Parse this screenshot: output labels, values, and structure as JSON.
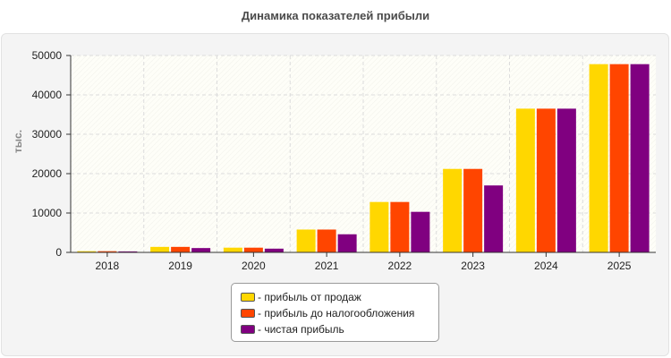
{
  "chart_data": {
    "type": "bar",
    "title": "Динамика показателей прибыли",
    "ylabel": "тыс.",
    "xlabel": "",
    "ylim": [
      0,
      50000
    ],
    "yticks": [
      0,
      10000,
      20000,
      30000,
      40000,
      50000
    ],
    "grid": true,
    "legend_position": "bottom-center",
    "categories": [
      "2018",
      "2019",
      "2020",
      "2021",
      "2022",
      "2023",
      "2024",
      "2025"
    ],
    "series": [
      {
        "name": "- прибыль от продаж",
        "color": "#FFD700",
        "values": [
          300,
          1400,
          1200,
          5800,
          12800,
          21200,
          36500,
          47800
        ]
      },
      {
        "name": "- прибыль до налогообложения",
        "color": "#FF4500",
        "values": [
          300,
          1400,
          1200,
          5800,
          12800,
          21200,
          36500,
          47800
        ]
      },
      {
        "name": "- чистая прибыль",
        "color": "#800080",
        "values": [
          250,
          1100,
          950,
          4600,
          10300,
          17000,
          36500,
          47800
        ]
      }
    ]
  }
}
